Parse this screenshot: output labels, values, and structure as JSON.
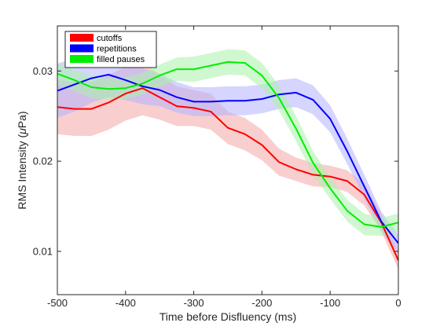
{
  "chart_data": {
    "type": "line",
    "title": "",
    "xlabel": "Time before Disfluency (ms)",
    "ylabel": "RMS Intensity (μPa)",
    "ylabel_prefix": "RMS Intensity (",
    "ylabel_mu": "μ",
    "ylabel_suffix": "Pa)",
    "xlim": [
      -500,
      0
    ],
    "ylim": [
      0.0052,
      0.035
    ],
    "xticks": [
      -500,
      -400,
      -300,
      -200,
      -100,
      0
    ],
    "xtick_labels": [
      "-500",
      "-400",
      "-300",
      "-200",
      "-100",
      "0"
    ],
    "yticks": [
      0.01,
      0.02,
      0.03
    ],
    "ytick_labels": [
      "0.01",
      "0.02",
      "0.03"
    ],
    "grid": false,
    "legend_position": "top-left",
    "x": [
      -500,
      -475,
      -450,
      -425,
      -400,
      -375,
      -350,
      -325,
      -300,
      -275,
      -250,
      -225,
      -200,
      -175,
      -150,
      -125,
      -100,
      -75,
      -50,
      -25,
      0
    ],
    "series": [
      {
        "name": "cutoffs",
        "color": "#ff0000",
        "band_color": "#f4a6a6",
        "values": [
          0.026,
          0.0258,
          0.0258,
          0.0265,
          0.0275,
          0.0281,
          0.0271,
          0.0261,
          0.0259,
          0.0255,
          0.0237,
          0.023,
          0.0218,
          0.0199,
          0.0191,
          0.0185,
          0.0183,
          0.0178,
          0.0163,
          0.0132,
          0.009
        ],
        "band": [
          0.003,
          0.003,
          0.003,
          0.003,
          0.003,
          0.003,
          0.0025,
          0.0022,
          0.002,
          0.002,
          0.0018,
          0.0018,
          0.0017,
          0.0015,
          0.0013,
          0.0013,
          0.0012,
          0.0012,
          0.0012,
          0.001,
          0.001
        ]
      },
      {
        "name": "repetitions",
        "color": "#0000ff",
        "band_color": "#b3b3ff",
        "values": [
          0.0278,
          0.0285,
          0.0292,
          0.0296,
          0.029,
          0.0283,
          0.0279,
          0.0271,
          0.0266,
          0.0266,
          0.0267,
          0.0267,
          0.0269,
          0.0274,
          0.0276,
          0.0268,
          0.0247,
          0.0211,
          0.0172,
          0.0133,
          0.0109
        ],
        "band": [
          0.003,
          0.003,
          0.0027,
          0.0025,
          0.0022,
          0.002,
          0.0018,
          0.0017,
          0.0016,
          0.0016,
          0.0016,
          0.0016,
          0.0016,
          0.0016,
          0.0016,
          0.0016,
          0.0015,
          0.0014,
          0.0013,
          0.0011,
          0.001
        ]
      },
      {
        "name": "filled pauses",
        "color": "#00ee00",
        "band_color": "#a9f2a9",
        "values": [
          0.0297,
          0.029,
          0.0282,
          0.028,
          0.0281,
          0.0286,
          0.0295,
          0.0302,
          0.0302,
          0.0306,
          0.031,
          0.0309,
          0.0295,
          0.027,
          0.0236,
          0.0198,
          0.017,
          0.0145,
          0.013,
          0.0127,
          0.0132
        ],
        "band": [
          0.0012,
          0.0012,
          0.0012,
          0.0012,
          0.0012,
          0.0012,
          0.0012,
          0.0013,
          0.0014,
          0.0014,
          0.0014,
          0.0014,
          0.0014,
          0.0014,
          0.0014,
          0.0013,
          0.0012,
          0.0012,
          0.0012,
          0.001,
          0.001
        ]
      }
    ]
  }
}
